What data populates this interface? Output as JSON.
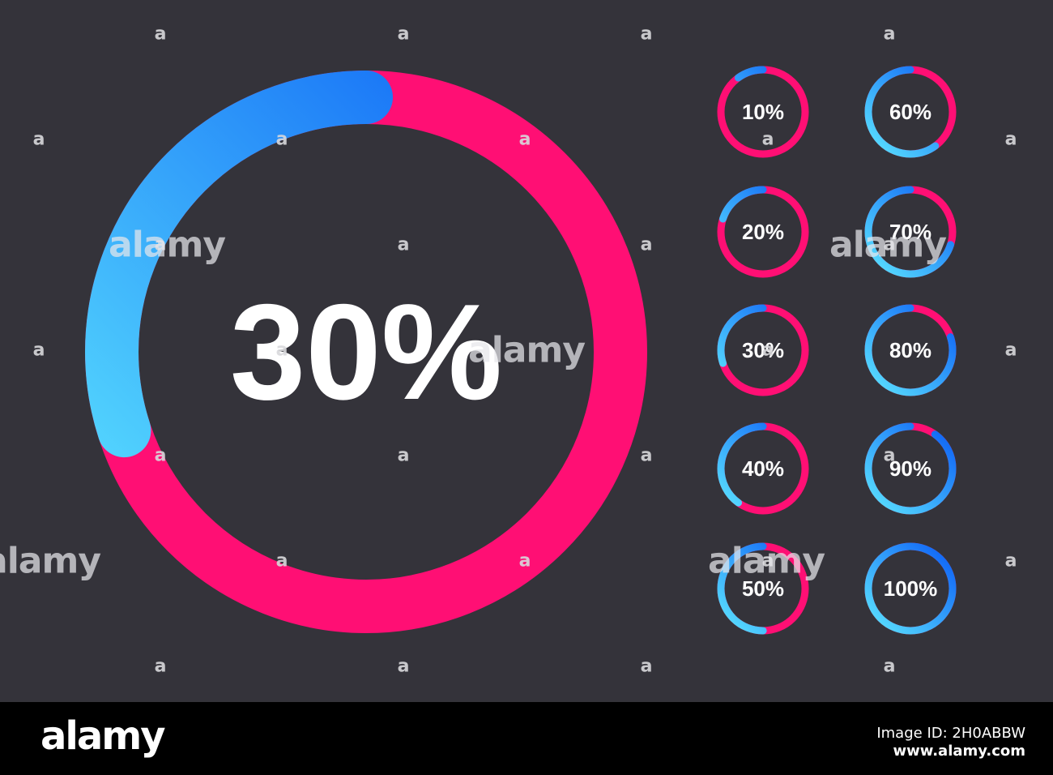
{
  "main_chart": {
    "value": 30,
    "label": "30%"
  },
  "small_charts": [
    {
      "value": 10,
      "label": "10%"
    },
    {
      "value": 60,
      "label": "60%"
    },
    {
      "value": 20,
      "label": "20%"
    },
    {
      "value": 70,
      "label": "70%"
    },
    {
      "value": 30,
      "label": "30%"
    },
    {
      "value": 80,
      "label": "80%"
    },
    {
      "value": 40,
      "label": "40%"
    },
    {
      "value": 90,
      "label": "90%"
    },
    {
      "value": 50,
      "label": "50%"
    },
    {
      "value": 100,
      "label": "100%"
    }
  ],
  "colors": {
    "background": "#34333a",
    "track": "#ff0f74",
    "progress_start": "#5de6ff",
    "progress_end": "#0a5cf5",
    "text": "#ffffff"
  },
  "watermark": {
    "logo_text": "alamy",
    "mark_glyph": "a"
  },
  "footer": {
    "logo": "alamy",
    "image_id": "Image ID: 2H0ABBW",
    "site": "www.alamy.com"
  }
}
